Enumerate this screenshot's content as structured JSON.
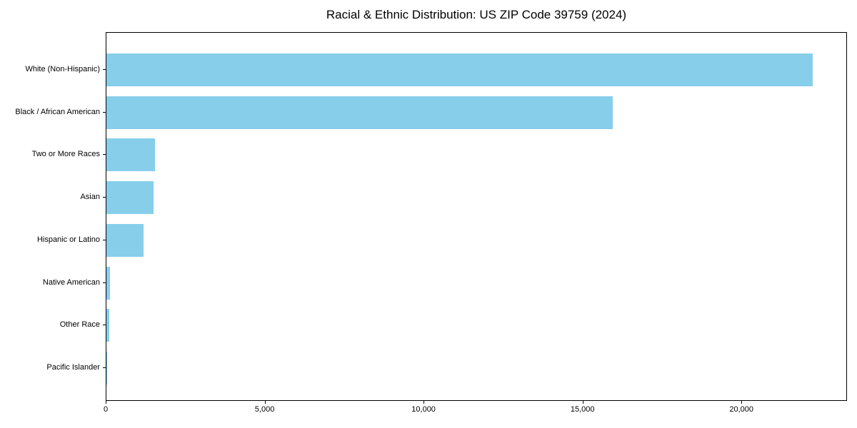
{
  "chart_data": {
    "type": "bar",
    "orientation": "horizontal",
    "title": "Racial & Ethnic Distribution: US ZIP Code 39759 (2024)",
    "categories": [
      "White (Non-Hispanic)",
      "Black / African American",
      "Two or More Races",
      "Asian",
      "Hispanic or Latino",
      "Native American",
      "Other Race",
      "Pacific Islander"
    ],
    "values": [
      22210,
      15930,
      1520,
      1480,
      1160,
      110,
      80,
      10
    ],
    "xlabel": "",
    "ylabel": "",
    "xlim": [
      0,
      23320
    ],
    "xticks": [
      0,
      5000,
      10000,
      15000,
      20000
    ],
    "xtick_labels": [
      "0",
      "5,000",
      "10,000",
      "15,000",
      "20,000"
    ],
    "bar_color": "#87CEEB",
    "axis_color": "#000000",
    "background_color": "#ffffff",
    "grid": false
  }
}
